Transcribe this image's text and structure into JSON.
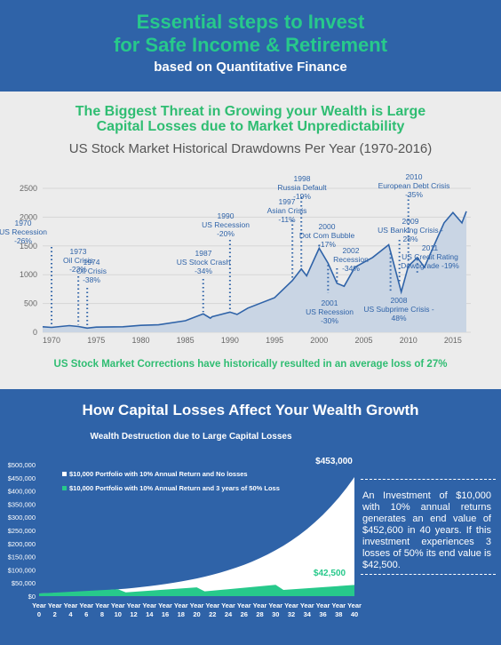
{
  "header": {
    "title_line1": "Essential steps to Invest",
    "title_line2": "for Safe Income & Retirement",
    "subtitle": "based on Quantitative Finance"
  },
  "section1": {
    "heading_line1": "The Biggest Threat in Growing your Wealth is Large",
    "heading_line2": "Capital Losses due to Market Unpredictability",
    "footer": "US Stock Market Corrections have historically resulted in an average loss of 27%"
  },
  "section2": {
    "heading": "How Capital Losses Affect Your Wealth Growth",
    "note": "An Investment of $10,000 with 10% annual returns generates an end value of $452,600 in 40 years. If this investment experiences 3 losses of 50% its end value is $42,500."
  },
  "colors": {
    "accent_green": "#27c98b",
    "background_blue": "#2f63a8",
    "area_fill": "#c9d5e4",
    "line": "#2f63a8"
  },
  "chart_data": [
    {
      "type": "area",
      "title": "US Stock Market Historical Drawdowns Per Year (1970-2016)",
      "xlim": [
        1969,
        2017
      ],
      "ylim": [
        0,
        2500
      ],
      "xticks": [
        1970,
        1975,
        1980,
        1985,
        1990,
        1995,
        2000,
        2005,
        2010,
        2015
      ],
      "yticks": [
        0,
        500,
        1000,
        1500,
        2000,
        2500
      ],
      "x": [
        1969,
        1970,
        1972,
        1973,
        1974,
        1975,
        1978,
        1980,
        1982,
        1985,
        1987,
        1987.8,
        1988,
        1990,
        1990.8,
        1992,
        1995,
        1997,
        1998,
        1998.6,
        2000,
        2001,
        2002,
        2002.8,
        2004,
        2006,
        2007.8,
        2009.2,
        2010,
        2011,
        2011.8,
        2013,
        2014,
        2015,
        2016,
        2016.5
      ],
      "y": [
        95,
        85,
        115,
        100,
        72,
        90,
        95,
        120,
        130,
        200,
        320,
        245,
        270,
        350,
        310,
        420,
        600,
        900,
        1100,
        980,
        1460,
        1200,
        850,
        800,
        1130,
        1300,
        1520,
        700,
        1150,
        1300,
        1130,
        1550,
        1900,
        2080,
        1900,
        2100
      ],
      "annotations": [
        {
          "lines": [
            "1970",
            "US Recession",
            "-26%"
          ],
          "x": 1970
        },
        {
          "lines": [
            "1973",
            "Oil Crisis",
            "-23%"
          ],
          "x": 1973
        },
        {
          "lines": [
            "1974",
            "Oil Crisis",
            "-38%"
          ],
          "x": 1974
        },
        {
          "lines": [
            "1987",
            "US Stock Crash",
            "-34%"
          ],
          "x": 1987
        },
        {
          "lines": [
            "1990",
            "US Recession",
            "-20%"
          ],
          "x": 1990
        },
        {
          "lines": [
            "1997",
            "Asian  Crisis",
            "-11%"
          ],
          "x": 1997
        },
        {
          "lines": [
            "1998",
            "Russia Default",
            "-19%"
          ],
          "x": 1998
        },
        {
          "lines": [
            "2000",
            "Dot Com Bubble",
            "-17%"
          ],
          "x": 2000
        },
        {
          "lines": [
            "2001",
            "US Recession",
            "-30%"
          ],
          "x": 2001
        },
        {
          "lines": [
            "2002",
            "Recession",
            "-34%"
          ],
          "x": 2002
        },
        {
          "lines": [
            "2008",
            "US Subprime Crisis -",
            "48%"
          ],
          "x": 2008
        },
        {
          "lines": [
            "2009",
            "US Banking Crisis -",
            "28%"
          ],
          "x": 2009
        },
        {
          "lines": [
            "2010",
            "European Debt Crisis",
            "-35%"
          ],
          "x": 2010
        },
        {
          "lines": [
            "2011",
            "US Credit Rating",
            "Downgrade -19%"
          ],
          "x": 2011
        }
      ]
    },
    {
      "type": "area",
      "title": "Wealth Destruction due to Large Capital Losses",
      "xlim": [
        0,
        40
      ],
      "ylim": [
        0,
        500000
      ],
      "ytick_labels": [
        "$0",
        "$50,000",
        "$100,000",
        "$150,000",
        "$200,000",
        "$250,000",
        "$300,000",
        "$350,000",
        "$400,000",
        "$450,000",
        "$500,000"
      ],
      "xtick_labels": [
        "0",
        "2",
        "4",
        "6",
        "8",
        "10",
        "12",
        "14",
        "16",
        "18",
        "20",
        "22",
        "24",
        "26",
        "28",
        "30",
        "32",
        "34",
        "36",
        "38",
        "40"
      ],
      "xtick_prefix": "Year",
      "series": [
        {
          "name": "$10,000 Portfolio with 10% Annual Return and No losses",
          "color": "#ffffff",
          "end_label": "$453,000",
          "x": [
            0,
            40
          ],
          "growth_rate": 0.1,
          "start_value": 10000,
          "end_value": 453000
        },
        {
          "name": "$10,000 Portfolio with 10% Annual Return and 3 years of 50% Loss",
          "color": "#27c98b",
          "end_label": "$42,500",
          "x": [
            0,
            10,
            11,
            20,
            21,
            30,
            31,
            40
          ],
          "y": [
            10000,
            25900,
            14300,
            33500,
            18400,
            43000,
            23700,
            42500
          ]
        }
      ]
    }
  ]
}
